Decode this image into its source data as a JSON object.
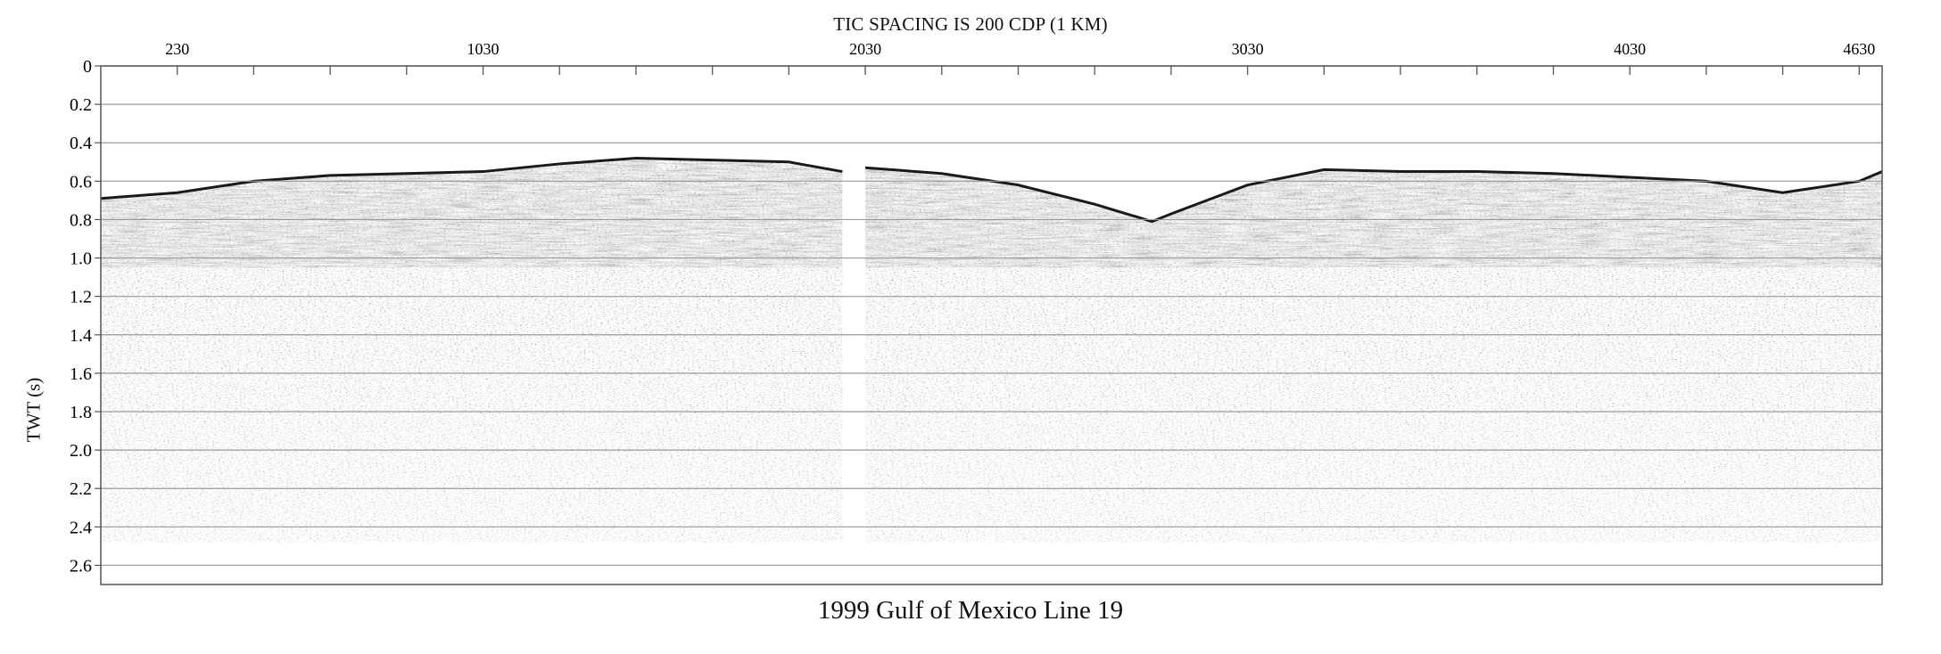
{
  "figure": {
    "header": "TIC SPACING IS 200 CDP (1 KM)",
    "caption": "1999 Gulf of Mexico Line 19",
    "ylabel": "TWT (s)"
  },
  "chart_data": {
    "type": "seismic-section",
    "title": "1999 Gulf of Mexico Line 19",
    "top_axis": {
      "label": "TIC SPACING IS 200 CDP (1 KM)",
      "unit": "CDP",
      "tick_spacing": 200,
      "labeled_ticks": [
        230,
        1030,
        2030,
        3030,
        4030,
        4630
      ],
      "range": [
        30,
        4690
      ]
    },
    "y_axis": {
      "label": "TWT (s)",
      "ticks": [
        "0",
        "0.2",
        "0.4",
        "0.6",
        "0.8",
        "1.0",
        "1.2",
        "1.4",
        "1.6",
        "1.8",
        "2.0",
        "2.2",
        "2.4",
        "2.6"
      ],
      "range": [
        0,
        2.7
      ],
      "inverted": true,
      "grid": true
    },
    "data_gap_cdp": [
      1970,
      2030
    ],
    "data_max_twt": 2.48,
    "seafloor": {
      "cdp": [
        30,
        230,
        430,
        630,
        830,
        1030,
        1230,
        1430,
        1630,
        1830,
        1970,
        2030,
        2230,
        2430,
        2630,
        2780,
        2830,
        3030,
        3230,
        3430,
        3630,
        3830,
        4030,
        4230,
        4430,
        4630,
        4690
      ],
      "twt": [
        0.69,
        0.66,
        0.6,
        0.57,
        0.56,
        0.55,
        0.51,
        0.48,
        0.49,
        0.5,
        0.55,
        0.53,
        0.56,
        0.62,
        0.72,
        0.81,
        0.77,
        0.62,
        0.54,
        0.55,
        0.55,
        0.56,
        0.58,
        0.6,
        0.66,
        0.6,
        0.55
      ]
    },
    "colors": {
      "background": "#ffffff",
      "trace_ink": "#1a1a1a",
      "gridline": "#9a9a9a",
      "frame": "#555555"
    }
  }
}
